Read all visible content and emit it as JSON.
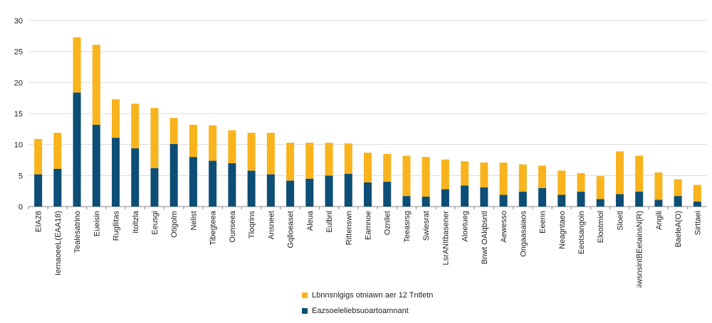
{
  "chart_data": {
    "type": "bar",
    "stacked": true,
    "categories": [
      "EIA28",
      "IernaoeeL(EAA18)",
      "Tealesatrino",
      "Eueisin",
      "Rugllitas",
      "Itoltzla",
      "Eeusgi",
      "Otigolm",
      "Nelist",
      "Tibegteea",
      "Ounseea",
      "Tloqrins",
      "Ansneet",
      "Gqlloeaset",
      "Aleua",
      "Eulbnl",
      "Rittenswn",
      "Eamnoe",
      "Oznllet",
      "Teeasrsg",
      "Swiesrat",
      "LsrANItbasener",
      "Aloetueg",
      "Bnwt OAlqbsntl",
      "Aewesso",
      "Ongaasaiaos",
      "Eeenn",
      "Neagntaeo",
      "Eeotsangoin",
      "Elootmiol",
      "Sloetl",
      "SiwsnsintBEetainsN(R)",
      "Angili",
      "BaeleA(O)",
      "Sirttaei"
    ],
    "series": [
      {
        "name": "Eazsoeleliebsuoartoamnant",
        "color": "#0c4e76",
        "values": [
          5.2,
          6.1,
          18.4,
          13.2,
          11.1,
          9.4,
          6.2,
          10.1,
          8.0,
          7.4,
          7.0,
          5.8,
          5.2,
          4.2,
          4.5,
          5.0,
          5.3,
          3.9,
          4.0,
          1.7,
          1.6,
          2.8,
          3.4,
          3.1,
          1.9,
          2.4,
          3.0,
          1.9,
          2.4,
          1.2,
          2.0,
          2.4,
          1.1,
          1.7,
          0.8
        ]
      },
      {
        "name": "Lbnnsnlgigs otniawn aer 12 Tntletn",
        "color": "#f9b31c",
        "values": [
          5.7,
          5.8,
          8.9,
          12.9,
          6.2,
          7.2,
          9.7,
          4.2,
          5.2,
          5.7,
          5.3,
          6.1,
          6.7,
          6.1,
          5.8,
          5.3,
          4.9,
          4.8,
          4.5,
          6.5,
          6.4,
          4.8,
          3.9,
          4.0,
          5.2,
          4.4,
          3.6,
          3.9,
          3.0,
          3.7,
          6.9,
          5.8,
          4.4,
          2.7,
          2.7
        ]
      }
    ],
    "ylim": [
      0,
      30
    ],
    "yticks": [
      0,
      5,
      10,
      15,
      20,
      25,
      30
    ],
    "grid": true,
    "legend": "bottom",
    "xlabel": "",
    "ylabel": ""
  },
  "legend": {
    "items": [
      {
        "label": "Lbnnsnlgigs otniawn aer 12 Tntletn",
        "color": "#f9b31c"
      },
      {
        "label": "Eazsoeleliebsuoartoamnant",
        "color": "#0c4e76"
      }
    ]
  }
}
